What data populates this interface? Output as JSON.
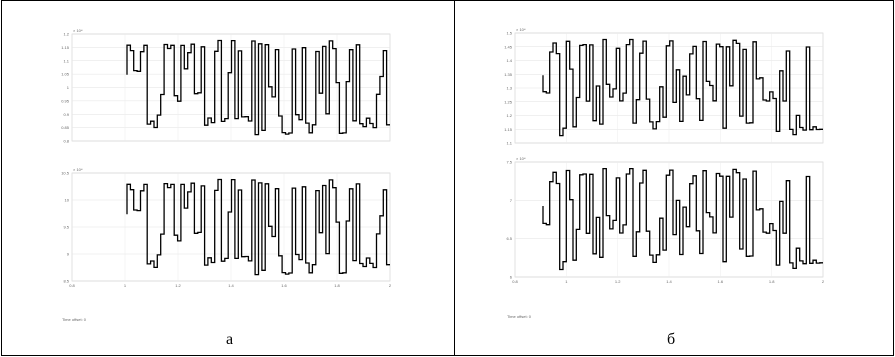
{
  "panels": [
    {
      "id": "a",
      "label": "а",
      "x_caption": "Time offset: 0",
      "x_ticks": [
        "0.8",
        "1",
        "1.2",
        "1.4",
        "1.6",
        "1.8",
        "2"
      ],
      "plots": [
        {
          "exponent": "× 10⁴",
          "y_ticks": [
            "1.2",
            "1.15",
            "1.1",
            "1.05",
            "1",
            "0.95",
            "0.9",
            "0.85",
            "0.8"
          ]
        },
        {
          "exponent": "× 10⁴",
          "y_ticks": [
            "10.5",
            "10",
            "9.5",
            "9",
            "8.5"
          ]
        }
      ]
    },
    {
      "id": "b",
      "label": "б",
      "x_caption": "Time offset: 0",
      "x_ticks": [
        "0.8",
        "1",
        "1.2",
        "1.4",
        "1.6",
        "1.8",
        "2"
      ],
      "plots": [
        {
          "exponent": "× 10⁴",
          "y_ticks": [
            "1.5",
            "1.45",
            "1.4",
            "1.35",
            "1.3",
            "1.25",
            "1.2",
            "1.15",
            "1.1"
          ]
        },
        {
          "exponent": "× 10⁴",
          "y_ticks": [
            "7.5",
            "7",
            "6.5",
            "6"
          ]
        }
      ]
    }
  ]
}
